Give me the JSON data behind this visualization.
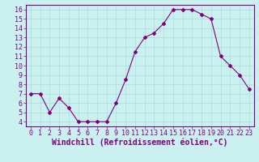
{
  "x": [
    0,
    1,
    2,
    3,
    4,
    5,
    6,
    7,
    8,
    9,
    10,
    11,
    12,
    13,
    14,
    15,
    16,
    17,
    18,
    19,
    20,
    21,
    22,
    23
  ],
  "y": [
    7.0,
    7.0,
    5.0,
    6.5,
    5.5,
    4.0,
    4.0,
    4.0,
    4.0,
    6.0,
    8.5,
    11.5,
    13.0,
    13.5,
    14.5,
    16.0,
    16.0,
    16.0,
    15.5,
    15.0,
    11.0,
    10.0,
    9.0,
    7.5
  ],
  "line_color": "#800080",
  "marker": "D",
  "marker_size": 2.0,
  "bg_color": "#caf0f0",
  "grid_color": "#aadddd",
  "xlabel": "Windchill (Refroidissement éolien,°C)",
  "xlim": [
    -0.5,
    23.5
  ],
  "ylim": [
    3.5,
    16.5
  ],
  "yticks": [
    4,
    5,
    6,
    7,
    8,
    9,
    10,
    11,
    12,
    13,
    14,
    15,
    16
  ],
  "xticks": [
    0,
    1,
    2,
    3,
    4,
    5,
    6,
    7,
    8,
    9,
    10,
    11,
    12,
    13,
    14,
    15,
    16,
    17,
    18,
    19,
    20,
    21,
    22,
    23
  ],
  "tick_label_fontsize": 6.0,
  "xlabel_fontsize": 7.0
}
